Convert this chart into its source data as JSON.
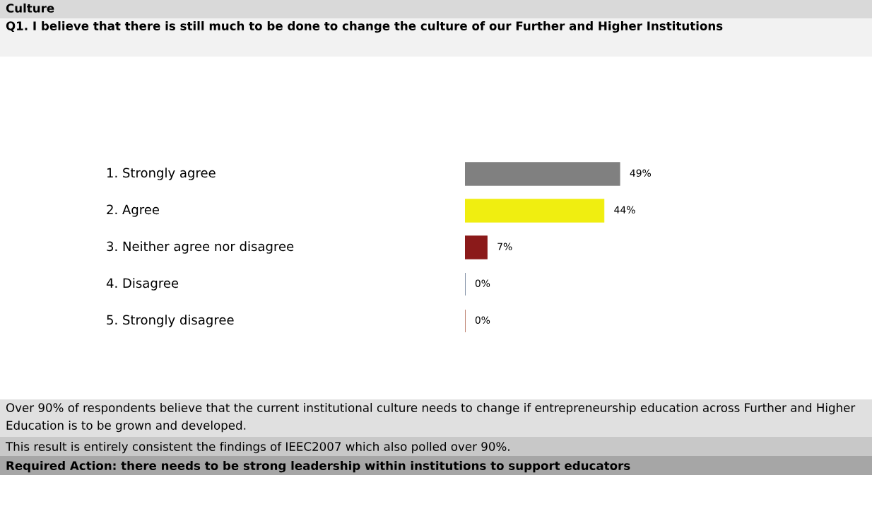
{
  "chart_data": {
    "type": "bar",
    "orientation": "horizontal",
    "title": "Culture",
    "subtitle": "Q1. I believe that there is still much to be done to change the culture of our Further and Higher Institutions",
    "categories": [
      "1. Strongly agree",
      "2. Agree",
      "3. Neither agree nor disagree",
      "4. Disagree",
      "5. Strongly disagree"
    ],
    "values": [
      49,
      44,
      7,
      0,
      0
    ],
    "colors": [
      "#808080",
      "#f0ee10",
      "#8b1a1a",
      "#1f3a5f",
      "#8b2000"
    ],
    "value_labels": [
      "49%",
      "44%",
      "7%",
      "0%",
      "0%"
    ],
    "annotations": [
      "Over 90% of respondents believe that the current institutional culture needs to change if entrepreneurship education across Further and Higher Education is to be grown and developed.",
      "This result is entirely consistent the findings of IEEC2007 which also polled over 90%.",
      "Required Action: there needs to be strong leadership within institutions to support educators"
    ]
  }
}
